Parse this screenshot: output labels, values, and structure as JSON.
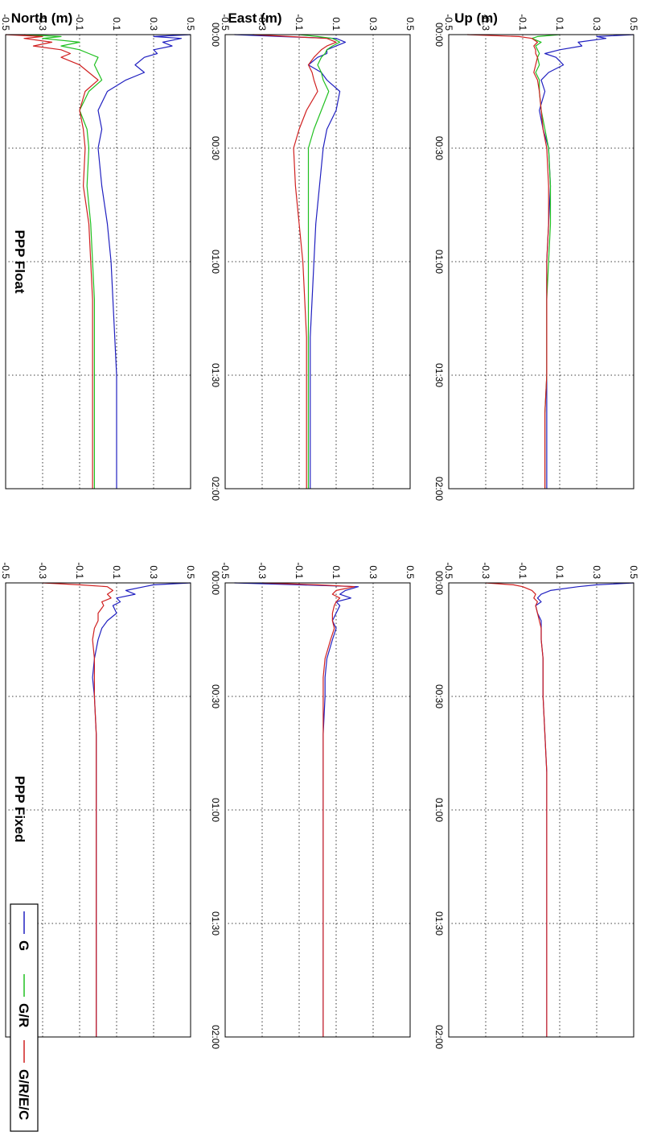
{
  "figure": {
    "rotation": "rotated 90 degrees clockwise (portrait page of a landscape figure)",
    "columns": [
      {
        "key": "float",
        "title": "PPP Float"
      },
      {
        "key": "fixed",
        "title": "PPP Fixed"
      }
    ],
    "rows": [
      {
        "key": "north",
        "ylabel": "North (m)"
      },
      {
        "key": "east",
        "ylabel": "East (m)"
      },
      {
        "key": "up",
        "ylabel": "Up (m)"
      }
    ],
    "legend": {
      "placement": "top-right of PPP Fixed / North panel",
      "entries": [
        {
          "label": "G",
          "color": "#2020c0"
        },
        {
          "label": "G/R",
          "color": "#20c020"
        },
        {
          "label": "G/R/E/C",
          "color": "#d02020"
        }
      ]
    }
  },
  "chart_data": [
    {
      "type": "line",
      "panel": "float-north",
      "title": "",
      "xlabel": "",
      "ylabel": "North (m)",
      "xlim": [
        0,
        120
      ],
      "ylim": [
        -0.5,
        0.5
      ],
      "xticks": [
        0,
        30,
        60,
        90,
        120
      ],
      "xticklabels": [
        "00:00",
        "00:30",
        "01:00",
        "01:30",
        "02:00"
      ],
      "yticks": [
        -0.5,
        -0.3,
        -0.1,
        0.1,
        0.3,
        0.5
      ],
      "yticklabels": [
        "-0.5",
        "-0.3",
        "-0.1",
        "0.1",
        "0.3",
        "0.5"
      ],
      "grid": true,
      "x": [
        0,
        0.5,
        1,
        2,
        3,
        4,
        5,
        6,
        8,
        10,
        12,
        15,
        20,
        25,
        30,
        40,
        50,
        60,
        70,
        80,
        90,
        100,
        110,
        120
      ],
      "series": [
        {
          "name": "G",
          "color": "#2020c0",
          "values": [
            0.5,
            0.3,
            0.35,
            0.2,
            0.22,
            0.1,
            0.02,
            0.08,
            0.12,
            0.04,
            0.0,
            0.02,
            -0.01,
            0.01,
            0.04,
            0.05,
            0.04,
            0.03,
            0.03,
            0.03,
            0.03,
            0.03,
            0.03,
            0.03
          ]
        },
        {
          "name": "G/R",
          "color": "#20c020",
          "values": [
            0.1,
            -0.02,
            -0.05,
            0.0,
            -0.03,
            -0.02,
            -0.01,
            -0.02,
            -0.01,
            -0.03,
            -0.01,
            -0.01,
            0.0,
            0.02,
            0.04,
            0.05,
            0.05,
            0.04,
            0.03,
            0.03,
            0.03,
            0.02,
            0.02,
            0.02
          ]
        },
        {
          "name": "G/R/E/C",
          "color": "#d02020",
          "values": [
            -0.4,
            -0.12,
            -0.05,
            -0.02,
            -0.04,
            -0.03,
            -0.03,
            -0.02,
            -0.03,
            -0.04,
            -0.02,
            -0.01,
            0.0,
            0.01,
            0.03,
            0.04,
            0.04,
            0.03,
            0.03,
            0.03,
            0.03,
            0.02,
            0.02,
            0.02
          ]
        }
      ]
    },
    {
      "type": "line",
      "panel": "float-east",
      "title": "",
      "xlabel": "",
      "ylabel": "East (m)",
      "xlim": [
        0,
        120
      ],
      "ylim": [
        -0.5,
        0.5
      ],
      "xticks": [
        0,
        30,
        60,
        90,
        120
      ],
      "xticklabels": [
        "00:00",
        "00:30",
        "01:00",
        "01:30",
        "02:00"
      ],
      "yticks": [
        -0.5,
        -0.3,
        -0.1,
        0.1,
        0.3,
        0.5
      ],
      "yticklabels": [
        "-0.5",
        "-0.3",
        "-0.1",
        "0.1",
        "0.3",
        "0.5"
      ],
      "grid": true,
      "x": [
        0,
        0.5,
        1,
        2,
        3,
        4,
        5,
        6,
        8,
        10,
        12,
        15,
        20,
        25,
        30,
        40,
        50,
        60,
        70,
        80,
        90,
        100,
        110,
        120
      ],
      "series": [
        {
          "name": "G",
          "color": "#2020c0",
          "values": [
            -0.45,
            -0.2,
            0.1,
            0.15,
            0.1,
            0.05,
            0.05,
            0.0,
            -0.05,
            0.02,
            0.05,
            0.12,
            0.1,
            0.05,
            0.03,
            0.01,
            -0.01,
            -0.02,
            -0.03,
            -0.04,
            -0.04,
            -0.04,
            -0.04,
            -0.04
          ]
        },
        {
          "name": "G/R",
          "color": "#20c020",
          "values": [
            -0.1,
            0.0,
            0.08,
            0.12,
            0.08,
            0.05,
            0.04,
            0.02,
            0.0,
            0.02,
            0.03,
            0.06,
            0.02,
            -0.02,
            -0.05,
            -0.05,
            -0.05,
            -0.05,
            -0.05,
            -0.05,
            -0.05,
            -0.05,
            -0.05,
            -0.05
          ]
        },
        {
          "name": "G/R/E/C",
          "color": "#d02020",
          "values": [
            -0.35,
            -0.15,
            0.05,
            0.1,
            0.05,
            0.02,
            0.0,
            -0.02,
            -0.05,
            -0.03,
            -0.02,
            0.0,
            -0.06,
            -0.1,
            -0.13,
            -0.12,
            -0.1,
            -0.08,
            -0.07,
            -0.06,
            -0.06,
            -0.06,
            -0.06,
            -0.06
          ]
        }
      ]
    },
    {
      "type": "line",
      "panel": "float-up",
      "title": "",
      "xlabel": "",
      "ylabel": "Up (m)",
      "xlim": [
        0,
        120
      ],
      "ylim": [
        -0.5,
        0.5
      ],
      "xticks": [
        0,
        30,
        60,
        90,
        120
      ],
      "xticklabels": [
        "00:00",
        "00:30",
        "01:00",
        "01:30",
        "02:00"
      ],
      "yticks": [
        -0.5,
        -0.3,
        -0.1,
        0.1,
        0.3,
        0.5
      ],
      "yticklabels": [
        "-0.5",
        "-0.3",
        "-0.1",
        "0.1",
        "0.3",
        "0.5"
      ],
      "grid": true,
      "x": [
        0,
        0.5,
        1,
        2,
        3,
        4,
        5,
        6,
        8,
        10,
        12,
        15,
        20,
        25,
        30,
        40,
        50,
        60,
        70,
        80,
        90,
        100,
        110,
        120
      ],
      "series": [
        {
          "name": "G",
          "color": "#2020c0",
          "values": [
            0.5,
            0.3,
            0.45,
            0.35,
            0.4,
            0.3,
            0.32,
            0.25,
            0.2,
            0.25,
            0.15,
            0.05,
            0.0,
            0.02,
            0.0,
            0.02,
            0.05,
            0.07,
            0.08,
            0.09,
            0.1,
            0.1,
            0.1,
            0.1
          ]
        },
        {
          "name": "G/R",
          "color": "#20c020",
          "values": [
            -0.4,
            -0.2,
            -0.3,
            -0.1,
            -0.2,
            -0.1,
            -0.05,
            0.0,
            -0.02,
            0.0,
            0.02,
            -0.05,
            -0.1,
            -0.06,
            -0.05,
            -0.06,
            -0.04,
            -0.03,
            -0.02,
            -0.02,
            -0.02,
            -0.02,
            -0.02,
            -0.02
          ]
        },
        {
          "name": "G/R/E/C",
          "color": "#d02020",
          "values": [
            -0.5,
            -0.3,
            -0.4,
            -0.25,
            -0.35,
            -0.2,
            -0.15,
            -0.2,
            -0.1,
            -0.05,
            0.0,
            -0.07,
            -0.1,
            -0.08,
            -0.07,
            -0.08,
            -0.05,
            -0.04,
            -0.03,
            -0.03,
            -0.03,
            -0.03,
            -0.03,
            -0.03
          ]
        }
      ]
    },
    {
      "type": "line",
      "panel": "fixed-north",
      "title": "",
      "xlabel": "",
      "ylabel": "",
      "xlim": [
        0,
        120
      ],
      "ylim": [
        -0.5,
        0.5
      ],
      "xticks": [
        0,
        30,
        60,
        90,
        120
      ],
      "xticklabels": [
        "00:00",
        "00:30",
        "01:00",
        "01:30",
        "02:00"
      ],
      "yticks": [
        -0.5,
        -0.3,
        -0.1,
        0.1,
        0.3,
        0.5
      ],
      "yticklabels": [
        "-0.5",
        "-0.3",
        "-0.1",
        "0.1",
        "0.3",
        "0.5"
      ],
      "grid": true,
      "x": [
        0,
        0.5,
        1,
        2,
        3,
        4,
        5,
        6,
        8,
        10,
        12,
        15,
        20,
        25,
        30,
        40,
        50,
        60,
        70,
        80,
        90,
        100,
        110,
        120
      ],
      "series": [
        {
          "name": "G",
          "color": "#2020c0",
          "values": [
            0.5,
            0.3,
            0.2,
            0.05,
            0.0,
            -0.02,
            0.0,
            -0.03,
            -0.02,
            0.0,
            0.0,
            0.0,
            0.01,
            0.01,
            0.01,
            0.02,
            0.03,
            0.03,
            0.03,
            0.03,
            0.03,
            0.03,
            0.03,
            0.03
          ]
        },
        {
          "name": "G/R/E/C",
          "color": "#d02020",
          "values": [
            -0.3,
            -0.15,
            -0.1,
            -0.05,
            -0.03,
            -0.04,
            -0.02,
            -0.03,
            -0.02,
            -0.01,
            0.0,
            0.0,
            0.01,
            0.01,
            0.01,
            0.02,
            0.03,
            0.03,
            0.03,
            0.03,
            0.03,
            0.03,
            0.03,
            0.03
          ]
        }
      ]
    },
    {
      "type": "line",
      "panel": "fixed-east",
      "title": "",
      "xlabel": "",
      "ylabel": "",
      "xlim": [
        0,
        120
      ],
      "ylim": [
        -0.5,
        0.5
      ],
      "xticks": [
        0,
        30,
        60,
        90,
        120
      ],
      "xticklabels": [
        "00:00",
        "00:30",
        "01:00",
        "01:30",
        "02:00"
      ],
      "yticks": [
        -0.5,
        -0.3,
        -0.1,
        0.1,
        0.3,
        0.5
      ],
      "yticklabels": [
        "-0.5",
        "-0.3",
        "-0.1",
        "0.1",
        "0.3",
        "0.5"
      ],
      "grid": true,
      "x": [
        0,
        0.5,
        1,
        2,
        3,
        4,
        5,
        6,
        8,
        10,
        12,
        15,
        20,
        25,
        30,
        40,
        50,
        60,
        70,
        80,
        90,
        100,
        110,
        120
      ],
      "series": [
        {
          "name": "G",
          "color": "#2020c0",
          "values": [
            -0.45,
            -0.1,
            0.22,
            0.15,
            0.12,
            0.18,
            0.1,
            0.12,
            0.1,
            0.08,
            0.1,
            0.08,
            0.05,
            0.04,
            0.04,
            0.03,
            0.03,
            0.03,
            0.03,
            0.03,
            0.03,
            0.03,
            0.03,
            0.03
          ]
        },
        {
          "name": "G/R/E/C",
          "color": "#d02020",
          "values": [
            -0.3,
            0.0,
            0.2,
            0.1,
            0.08,
            0.12,
            0.1,
            0.09,
            0.08,
            0.08,
            0.09,
            0.07,
            0.04,
            0.03,
            0.03,
            0.03,
            0.03,
            0.03,
            0.03,
            0.03,
            0.03,
            0.03,
            0.03,
            0.03
          ]
        }
      ]
    },
    {
      "type": "line",
      "panel": "fixed-up",
      "title": "",
      "xlabel": "",
      "ylabel": "",
      "xlim": [
        0,
        120
      ],
      "ylim": [
        -0.5,
        0.5
      ],
      "xticks": [
        0,
        30,
        60,
        90,
        120
      ],
      "xticklabels": [
        "00:00",
        "00:30",
        "01:00",
        "01:30",
        "02:00"
      ],
      "yticks": [
        -0.5,
        -0.3,
        -0.1,
        0.1,
        0.3,
        0.5
      ],
      "yticklabels": [
        "-0.5",
        "-0.3",
        "-0.1",
        "0.1",
        "0.3",
        "0.5"
      ],
      "grid": true,
      "x": [
        0,
        0.5,
        1,
        2,
        3,
        4,
        5,
        6,
        8,
        10,
        12,
        15,
        20,
        25,
        30,
        40,
        50,
        60,
        70,
        80,
        90,
        100,
        110,
        120
      ],
      "series": [
        {
          "name": "G",
          "color": "#2020c0",
          "values": [
            0.5,
            0.3,
            0.25,
            0.15,
            0.2,
            0.1,
            0.12,
            0.08,
            0.1,
            0.05,
            0.02,
            0.0,
            -0.02,
            -0.03,
            -0.02,
            -0.01,
            -0.01,
            -0.01,
            -0.01,
            -0.01,
            -0.01,
            -0.01,
            -0.01,
            -0.01
          ]
        },
        {
          "name": "G/R/E/C",
          "color": "#d02020",
          "values": [
            -0.3,
            -0.1,
            0.05,
            0.08,
            0.05,
            0.07,
            0.02,
            0.03,
            0.0,
            0.0,
            -0.02,
            -0.03,
            -0.02,
            -0.02,
            -0.02,
            -0.01,
            -0.01,
            -0.01,
            -0.01,
            -0.01,
            -0.01,
            -0.01,
            -0.01,
            -0.01
          ]
        }
      ]
    }
  ]
}
